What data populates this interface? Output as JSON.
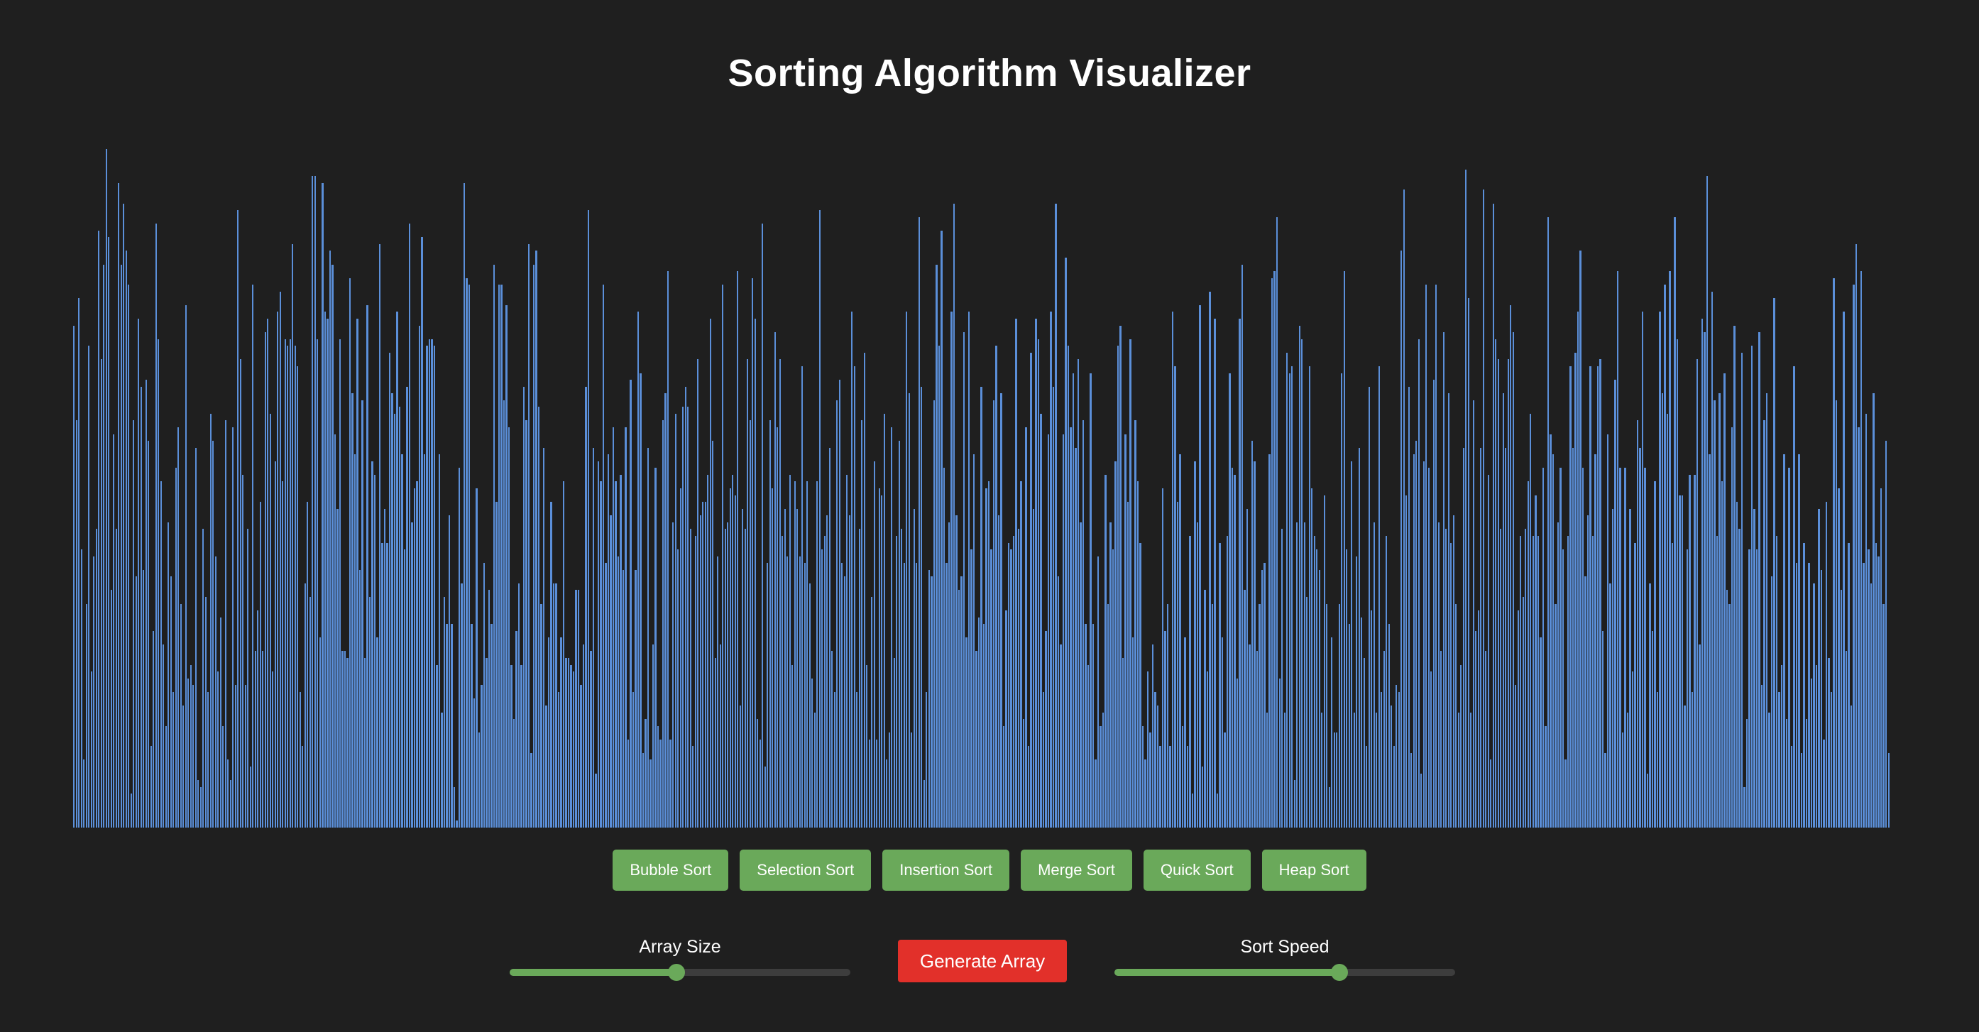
{
  "title": "Sorting Algorithm Visualizer",
  "colors": {
    "background": "#1f1f1f",
    "bar": "#5b8fd9",
    "algorithm_button": "#6aa95a",
    "generate_button": "#e2302a",
    "slider_fill": "#6aa95a",
    "slider_track": "#3d3d3d"
  },
  "chart_data": {
    "type": "bar",
    "title": "",
    "xlabel": "",
    "ylabel": "",
    "ylim": [
      0,
      100
    ],
    "values": [
      74,
      60,
      78,
      41,
      10,
      33,
      71,
      23,
      40,
      44,
      88,
      69,
      83,
      100,
      87,
      35,
      58,
      44,
      95,
      83,
      92,
      85,
      80,
      5,
      60,
      37,
      75,
      65,
      38,
      66,
      57,
      12,
      29,
      89,
      72,
      51,
      27,
      15,
      45,
      37,
      20,
      53,
      59,
      33,
      18,
      77,
      22,
      24,
      21,
      56,
      7,
      6,
      44,
      34,
      20,
      61,
      57,
      40,
      23,
      31,
      15,
      60,
      10,
      7,
      59,
      21,
      91,
      69,
      52,
      21,
      44,
      9,
      80,
      26,
      32,
      48,
      26,
      73,
      75,
      61,
      23,
      54,
      76,
      79,
      51,
      72,
      71,
      72,
      86,
      71,
      68,
      20,
      12,
      36,
      48,
      34,
      96,
      96,
      72,
      28,
      95,
      76,
      75,
      85,
      83,
      58,
      47,
      72,
      26,
      26,
      25,
      81,
      64,
      55,
      75,
      38,
      63,
      25,
      77,
      34,
      54,
      52,
      28,
      86,
      42,
      47,
      42,
      70,
      64,
      61,
      76,
      62,
      55,
      41,
      65,
      89,
      45,
      50,
      51,
      74,
      87,
      55,
      71,
      72,
      72,
      71,
      24,
      55,
      17,
      34,
      30,
      46,
      30,
      6,
      1,
      53,
      36,
      95,
      81,
      80,
      30,
      19,
      50,
      14,
      21,
      39,
      25,
      35,
      30,
      83,
      48,
      80,
      80,
      63,
      77,
      59,
      24,
      16,
      29,
      36,
      24,
      65,
      60,
      86,
      11,
      83,
      85,
      62,
      33,
      56,
      18,
      28,
      48,
      36,
      36,
      20,
      28,
      51,
      25,
      25,
      24,
      23,
      35,
      35,
      21,
      27,
      65,
      91,
      26,
      56,
      8,
      54,
      51,
      80,
      39,
      55,
      46,
      59,
      51,
      40,
      52,
      38,
      59,
      13,
      66,
      20,
      38,
      76,
      67,
      11,
      16,
      56,
      10,
      27,
      53,
      15,
      13,
      60,
      64,
      82,
      13,
      45,
      61,
      41,
      50,
      62,
      65,
      62,
      44,
      12,
      43,
      69,
      46,
      48,
      48,
      52,
      75,
      57,
      25,
      40,
      27,
      80,
      44,
      45,
      50,
      52,
      49,
      82,
      18,
      47,
      44,
      69,
      60,
      81,
      75,
      16,
      13,
      89,
      9,
      39,
      60,
      50,
      73,
      59,
      69,
      43,
      47,
      40,
      52,
      24,
      51,
      47,
      40,
      68,
      39,
      51,
      36,
      22,
      17,
      51,
      91,
      41,
      43,
      46,
      56,
      26,
      20,
      63,
      66,
      39,
      37,
      52,
      46,
      76,
      68,
      20,
      44,
      60,
      70,
      24,
      13,
      34,
      54,
      13,
      50,
      49,
      61,
      10,
      14,
      59,
      25,
      43,
      57,
      44,
      39,
      76,
      64,
      14,
      47,
      39,
      90,
      65,
      7,
      20,
      38,
      37,
      63,
      83,
      71,
      88,
      53,
      39,
      45,
      76,
      92,
      46,
      35,
      37,
      73,
      28,
      76,
      41,
      55,
      26,
      31,
      65,
      30,
      50,
      51,
      41,
      63,
      71,
      46,
      64,
      15,
      32,
      42,
      41,
      43,
      75,
      44,
      51,
      16,
      59,
      12,
      70,
      47,
      75,
      72,
      61,
      20,
      29,
      58,
      76,
      65,
      92,
      37,
      27,
      58,
      84,
      71,
      59,
      67,
      56,
      69,
      45,
      60,
      30,
      24,
      67,
      30,
      10,
      40,
      15,
      17,
      52,
      33,
      45,
      41,
      54,
      71,
      74,
      25,
      58,
      48,
      72,
      28,
      60,
      51,
      42,
      15,
      10,
      23,
      14,
      27,
      20,
      18,
      12,
      50,
      29,
      33,
      12,
      76,
      68,
      48,
      55,
      15,
      28,
      12,
      43,
      5,
      54,
      45,
      77,
      9,
      35,
      23,
      79,
      33,
      75,
      5,
      42,
      28,
      14,
      43,
      67,
      53,
      52,
      22,
      75,
      83,
      35,
      47,
      27,
      57,
      54,
      26,
      33,
      38,
      39,
      17,
      55,
      81,
      82,
      90,
      22,
      44,
      17,
      70,
      67,
      68,
      7,
      45,
      74,
      72,
      45,
      34,
      68,
      50,
      43,
      41,
      38,
      17,
      49,
      33,
      6,
      28,
      14,
      14,
      33,
      67,
      82,
      41,
      30,
      54,
      17,
      40,
      56,
      31,
      25,
      12,
      65,
      32,
      45,
      17,
      68,
      20,
      26,
      43,
      30,
      18,
      12,
      21,
      20,
      85,
      94,
      49,
      65,
      11,
      55,
      57,
      72,
      8,
      54,
      80,
      53,
      23,
      66,
      80,
      45,
      26,
      73,
      44,
      64,
      42,
      46,
      33,
      17,
      24,
      56,
      97,
      78,
      17,
      63,
      29,
      32,
      56,
      94,
      26,
      52,
      10,
      92,
      72,
      69,
      44,
      64,
      56,
      69,
      77,
      73,
      21,
      32,
      43,
      34,
      44,
      51,
      61,
      43,
      49,
      43,
      28,
      53,
      15,
      90,
      58,
      55,
      33,
      45,
      53,
      41,
      10,
      43,
      68,
      56,
      70,
      76,
      85,
      53,
      37,
      46,
      68,
      43,
      55,
      68,
      69,
      29,
      11,
      58,
      36,
      47,
      66,
      82,
      53,
      14,
      53,
      17,
      47,
      23,
      42,
      60,
      56,
      76,
      53,
      8,
      36,
      29,
      51,
      20,
      76,
      64,
      80,
      61,
      82,
      42,
      90,
      72,
      49,
      49,
      18,
      41,
      52,
      20,
      52,
      69,
      27,
      75,
      73,
      96,
      55,
      79,
      63,
      43,
      64,
      51,
      67,
      35,
      33,
      59,
      74,
      48,
      44,
      70,
      6,
      16,
      41,
      71,
      47,
      41,
      73,
      21,
      60,
      64,
      17,
      37,
      78,
      43,
      20,
      24,
      55,
      16,
      53,
      12,
      68,
      39,
      55,
      11,
      42,
      16,
      39,
      22,
      36,
      24,
      47,
      38,
      13,
      48,
      25,
      20,
      81,
      63,
      50,
      35,
      76,
      26,
      42,
      18,
      80,
      86,
      59,
      82,
      39,
      61,
      41,
      36,
      64,
      42,
      40,
      50,
      33,
      57,
      11
    ]
  },
  "algorithms": [
    {
      "label": "Bubble Sort"
    },
    {
      "label": "Selection Sort"
    },
    {
      "label": "Insertion Sort"
    },
    {
      "label": "Merge Sort"
    },
    {
      "label": "Quick Sort"
    },
    {
      "label": "Heap Sort"
    }
  ],
  "controls": {
    "array_size": {
      "label": "Array Size",
      "value_fraction": 0.49
    },
    "generate_label": "Generate Array",
    "sort_speed": {
      "label": "Sort Speed",
      "value_fraction": 0.66
    }
  }
}
